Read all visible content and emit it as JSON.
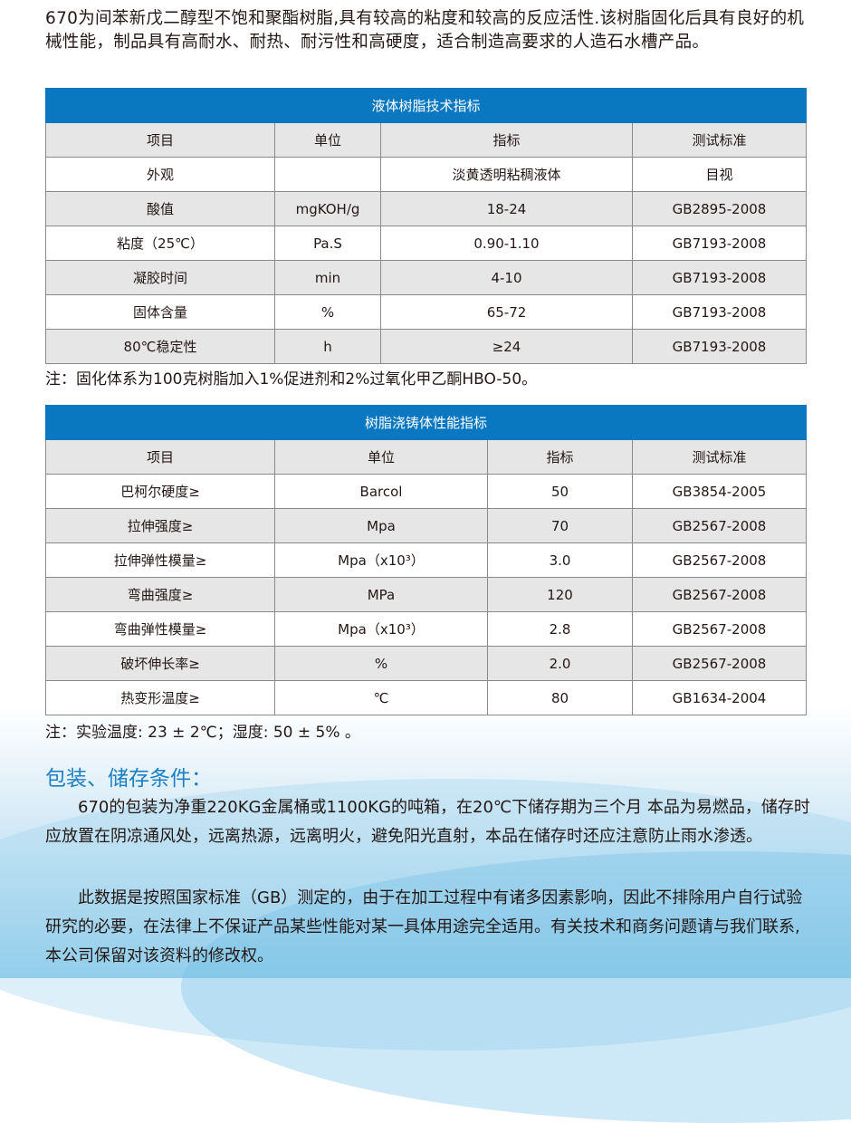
{
  "intro": "670为间苯新戊二醇型不饱和聚酯树脂,具有较高的粘度和较高的反应活性.该树脂固化后具有良好的机械性能，制品具有高耐水、耐热、耐污性和高硬度，适合制造高要求的人造石水槽产品。",
  "table1": {
    "title": "液体树脂技术指标",
    "headers": [
      "项目",
      "单位",
      "指标",
      "测试标准"
    ],
    "rows": [
      [
        "外观",
        "",
        "淡黄透明粘稠液体",
        "目视"
      ],
      [
        "酸值",
        "mgKOH/g",
        "18-24",
        "GB2895-2008"
      ],
      [
        "粘度（25℃）",
        "Pa.S",
        "0.90-1.10",
        "GB7193-2008"
      ],
      [
        "凝胶时间",
        "min",
        "4-10",
        "GB7193-2008"
      ],
      [
        "固体含量",
        "%",
        "65-72",
        "GB7193-2008"
      ],
      [
        "80℃稳定性",
        "h",
        "≥24",
        "GB7193-2008"
      ]
    ],
    "note": "注：固化体系为100克树脂加入1%促进剂和2%过氧化甲乙酮HBO-50。"
  },
  "table2": {
    "title": "树脂浇铸体性能指标",
    "headers": [
      "项目",
      "单位",
      "指标",
      "测试标准"
    ],
    "rows": [
      [
        "巴柯尔硬度≥",
        "Barcol",
        "50",
        "GB3854-2005"
      ],
      [
        "拉伸强度≥",
        "Mpa",
        "70",
        "GB2567-2008"
      ],
      [
        "拉伸弹性模量≥",
        "Mpa（x10³）",
        "3.0",
        "GB2567-2008"
      ],
      [
        "弯曲强度≥",
        "MPa",
        "120",
        "GB2567-2008"
      ],
      [
        "弯曲弹性模量≥",
        "Mpa（x10³）",
        "2.8",
        "GB2567-2008"
      ],
      [
        "破坏伸长率≥",
        "%",
        "2.0",
        "GB2567-2008"
      ],
      [
        "热变形温度≥",
        "℃",
        "80",
        "GB1634-2004"
      ]
    ],
    "note": "注：实验温度: 23 ± 2℃；湿度: 50 ± 5% 。"
  },
  "storage": {
    "heading": "包装、储存条件：",
    "para1": "670的包装为净重220KG金属桶或1100KG的吨箱，在20℃下储存期为三个月 本品为易燃品，储存时应放置在阴凉通风处，远离热源，远离明火，避免阳光直射，本品在储存时还应注意防止雨水渗透。",
    "para2": "此数据是按照国家标准（GB）测定的，由于在加工过程中有诸多因素影响，因此不排除用户自行试验研究的必要，在法律上不保证产品某些性能对某一具体用途完全适用。有关技术和商务问题请与我们联系,本公司保留对该资料的修改权。"
  },
  "colors": {
    "accent": "#0a78c0",
    "heading": "#1a7fc4",
    "row_alt": "#e6e6e6"
  }
}
